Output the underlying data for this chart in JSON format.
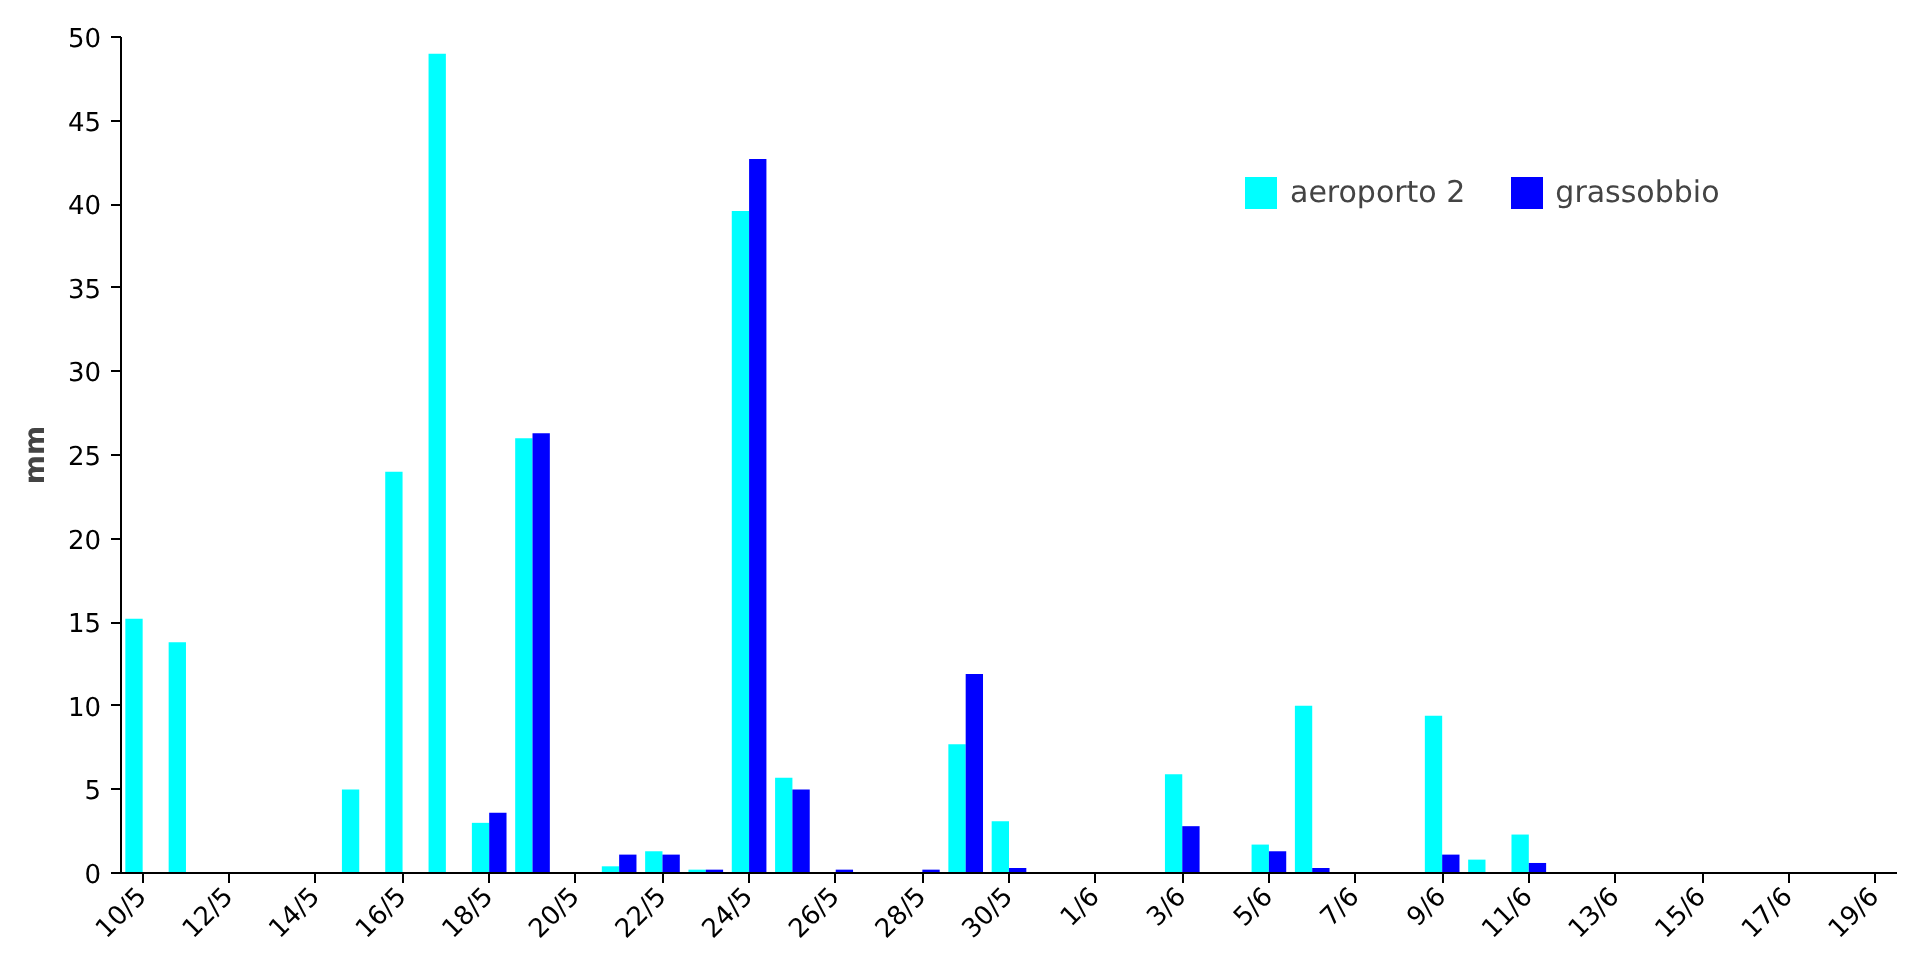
{
  "chart_data": {
    "type": "bar",
    "ylabel": "mm",
    "categories": [
      "10/5",
      null,
      "12/5",
      null,
      "14/5",
      null,
      "16/5",
      null,
      "18/5",
      null,
      "20/5",
      null,
      "22/5",
      null,
      "24/5",
      null,
      "26/5",
      null,
      "28/5",
      null,
      "30/5",
      null,
      "1/6",
      null,
      "3/6",
      null,
      "5/6",
      null,
      "7/6",
      null,
      "9/6",
      null,
      "11/6",
      null,
      "13/6",
      null,
      "15/6",
      null,
      "17/6",
      null,
      "19/6"
    ],
    "series": [
      {
        "name": "aeroporto 2",
        "color": "#00ffff",
        "values": [
          15.2,
          13.8,
          0,
          0,
          0,
          5.0,
          24,
          49,
          3.0,
          26,
          0,
          0.4,
          1.3,
          0.2,
          39.6,
          5.7,
          0,
          0,
          0,
          7.7,
          3.1,
          0,
          0,
          0,
          5.9,
          0,
          1.7,
          10,
          0,
          0,
          9.4,
          0.8,
          2.3,
          0,
          0,
          0,
          0,
          0,
          0,
          0,
          0
        ]
      },
      {
        "name": "grassobbio",
        "color": "#0000ff",
        "values": [
          0,
          0,
          0,
          0,
          0,
          0,
          0,
          0,
          3.6,
          26.3,
          0,
          1.1,
          1.1,
          0.2,
          42.7,
          5.0,
          0.2,
          0,
          0.2,
          11.9,
          0.3,
          0,
          0,
          0,
          2.8,
          0,
          1.3,
          0.3,
          0,
          0,
          1.1,
          0,
          0.6,
          0,
          0,
          0,
          0,
          0,
          0,
          0,
          0
        ]
      }
    ],
    "ylim": [
      0,
      50
    ],
    "yticks": [
      0,
      5,
      10,
      15,
      20,
      25,
      30,
      35,
      40,
      45,
      50
    ],
    "grid": false,
    "legend": "top right"
  }
}
